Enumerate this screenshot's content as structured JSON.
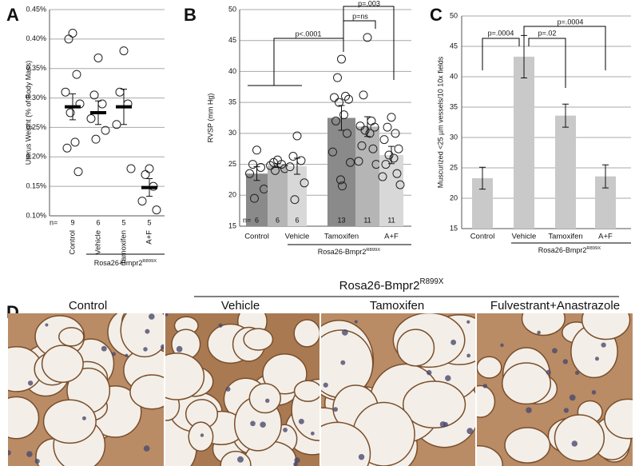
{
  "chart_data": [
    {
      "type": "strip",
      "panel_label": "A",
      "y_label": "Uterus Weight (% of Body Mass)",
      "categories": [
        "Control",
        "Vehicle",
        "Tamoxifen",
        "A+F"
      ],
      "values": [
        0.285,
        0.275,
        0.285,
        0.148
      ],
      "errors": [
        0.022,
        0.02,
        0.03,
        0.015
      ],
      "points": [
        [
          0.41,
          0.4,
          0.34,
          0.31,
          0.29,
          0.275,
          0.225,
          0.215,
          0.175
        ],
        [
          0.368,
          0.305,
          0.29,
          0.265,
          0.245,
          0.23
        ],
        [
          0.38,
          0.31,
          0.29,
          0.255,
          0.18
        ],
        [
          0.18,
          0.17,
          0.15,
          0.125,
          0.11
        ]
      ],
      "n_label": "n=",
      "n": [
        9,
        6,
        5,
        5
      ],
      "group_label": "Rosa26-Bmpr2",
      "group_label_sup": "R899X",
      "ylim": [
        0.1,
        0.45
      ],
      "yticks": [
        {
          "value": 0.1,
          "label": "0.10%"
        },
        {
          "value": 0.15,
          "label": "0.15%"
        },
        {
          "value": 0.2,
          "label": "0.20%"
        },
        {
          "value": 0.25,
          "label": "0.25%"
        },
        {
          "value": 0.3,
          "label": "0.30%"
        },
        {
          "value": 0.35,
          "label": "0.35%"
        },
        {
          "value": 0.4,
          "label": "0.40%"
        },
        {
          "value": 0.45,
          "label": "0.45%"
        }
      ],
      "grid": true
    },
    {
      "type": "bar",
      "panel_label": "B",
      "y_label": "RVSP (mm Hg)",
      "categories": [
        "Control",
        null,
        "Vehicle",
        "Tamoxifen",
        null,
        "A+F"
      ],
      "values": [
        23.5,
        24.8,
        24.7,
        32.5,
        31.1,
        26.5
      ],
      "errors": [
        1.1,
        0.3,
        1.3,
        2.0,
        1.6,
        1.4
      ],
      "colors": [
        "#8a8a8a",
        "#b5b5b5",
        "#d8d8d8",
        "#8a8a8a",
        "#b5b5b5",
        "#d8d8d8"
      ],
      "points": [
        [
          27.3,
          25,
          24.5,
          23.5,
          21,
          19.5
        ],
        [
          25.7,
          25.3,
          25,
          24.8,
          24.3,
          24
        ],
        [
          29.6,
          26.3,
          25.6,
          24.6,
          22,
          19.3
        ],
        [
          42,
          39,
          36,
          35.8,
          35.5,
          35,
          33,
          32,
          30,
          27,
          25.3,
          22.5,
          21.5
        ],
        [
          45.5,
          36.2,
          32,
          31.2,
          31,
          30.5,
          30,
          28,
          27.5,
          25.5,
          25
        ],
        [
          32.6,
          31,
          30,
          29,
          27.5,
          26.5,
          26,
          25,
          23.5,
          23,
          21.7
        ]
      ],
      "n_label": "n=",
      "n": [
        6,
        6,
        6,
        13,
        11,
        11
      ],
      "annotations": [
        "p<.0001",
        "p=ns",
        "p=.003"
      ],
      "group_label": "Rosa26-Bmpr2",
      "group_label_sup": "R899X",
      "ylim": [
        15,
        50
      ],
      "yticks": [
        15,
        20,
        25,
        30,
        35,
        40,
        45,
        50
      ],
      "grid": true
    },
    {
      "type": "bar",
      "panel_label": "C",
      "y_label": "Muscurized <25 µm vessels/10 10x fields",
      "categories": [
        "Control",
        "Vehicle",
        "Tamoxifen",
        "A+F"
      ],
      "values": [
        23.3,
        43.3,
        33.6,
        23.6
      ],
      "errors": [
        1.8,
        3.5,
        1.9,
        1.9
      ],
      "colors": [
        "#c9c9c9",
        "#c9c9c9",
        "#c9c9c9",
        "#c9c9c9"
      ],
      "annotations": [
        "p=.0004",
        "p=.02",
        "p=.0004"
      ],
      "group_label": "Rosa26-Bmpr2",
      "group_label_sup": "R899X",
      "ylim": [
        15,
        50
      ],
      "yticks": [
        15,
        20,
        25,
        30,
        35,
        40,
        45,
        50
      ],
      "grid": true
    }
  ],
  "panel_d": {
    "panel_label": "D",
    "group_label": "Rosa26-Bmpr2",
    "group_label_sup": "R899X",
    "columns": [
      "Control",
      "Vehicle",
      "Tamoxifen",
      "Fulvestrant+Anastrazole"
    ]
  }
}
